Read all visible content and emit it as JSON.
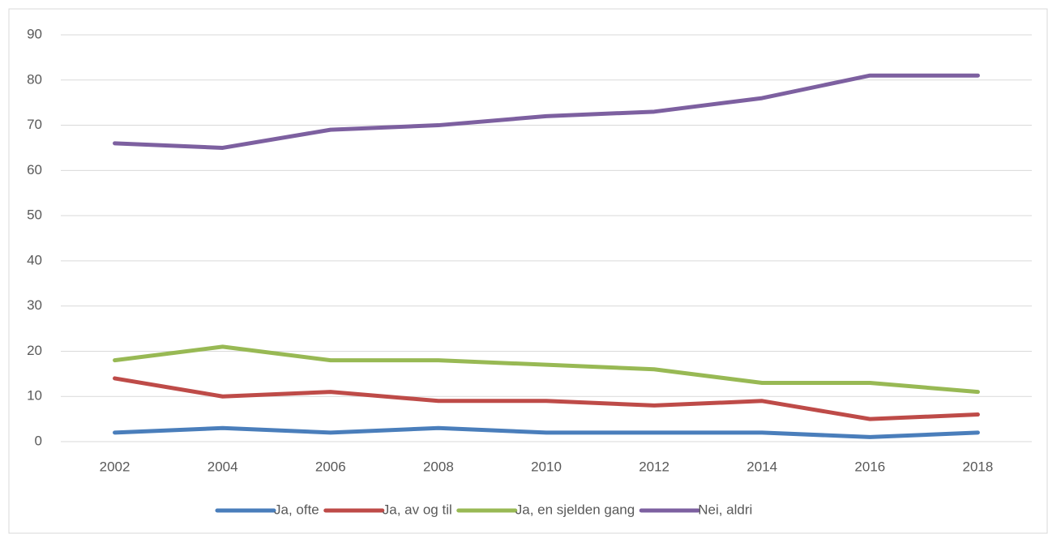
{
  "chart_data": {
    "type": "line",
    "categories": [
      "2002",
      "2004",
      "2006",
      "2008",
      "2010",
      "2012",
      "2014",
      "2016",
      "2018"
    ],
    "series": [
      {
        "name": "Ja, ofte",
        "color": "#4a7ebb",
        "values": [
          2,
          3,
          2,
          3,
          2,
          2,
          2,
          1,
          2
        ]
      },
      {
        "name": "Ja, av og til",
        "color": "#be4b48",
        "values": [
          14,
          10,
          11,
          9,
          9,
          8,
          9,
          5,
          6
        ]
      },
      {
        "name": "Ja, en sjelden gang",
        "color": "#98b954",
        "values": [
          18,
          21,
          18,
          18,
          17,
          16,
          13,
          13,
          11
        ]
      },
      {
        "name": "Nei, aldri",
        "color": "#7d60a0",
        "values": [
          66,
          65,
          69,
          70,
          72,
          73,
          76,
          81,
          81
        ]
      }
    ],
    "ylim": [
      0,
      90
    ],
    "yticks": [
      0,
      10,
      20,
      30,
      40,
      50,
      60,
      70,
      80,
      90
    ],
    "grid": true,
    "legend": "bottom"
  }
}
